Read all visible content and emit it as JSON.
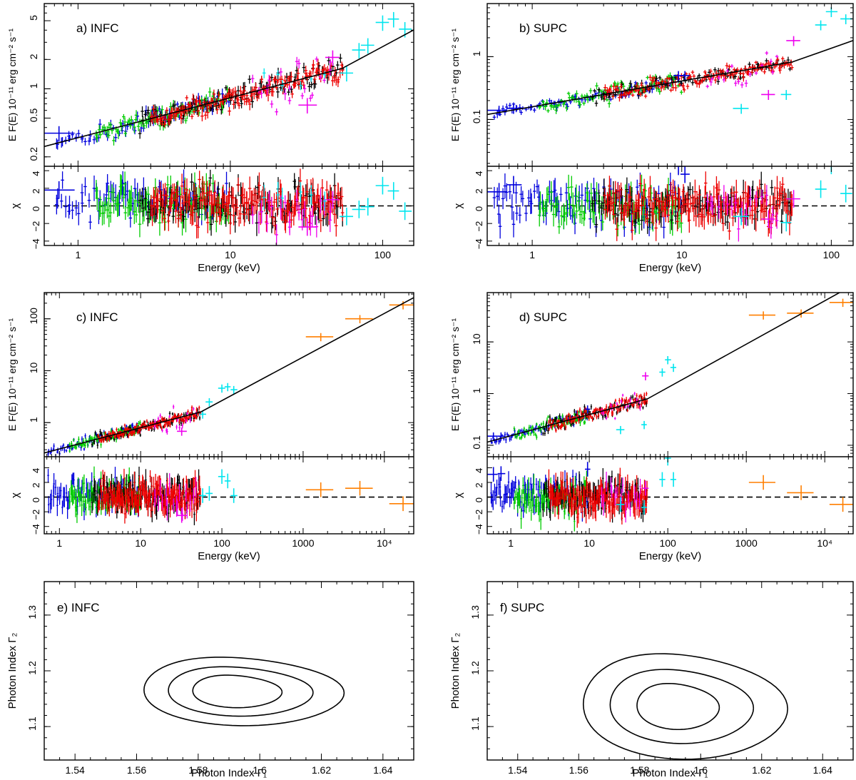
{
  "colors": {
    "black": "#000000",
    "red": "#ee0000",
    "green": "#00cc00",
    "blue": "#0000dd",
    "cyan": "#00e5ee",
    "magenta": "#ee00ee",
    "orange": "#ff7f00"
  },
  "chart_data": [
    {
      "id": "a",
      "type": "scatter",
      "title": "a)  INFC",
      "xlabel": "Energy (keV)",
      "ylabel": "E F(E) 10⁻¹¹ erg  cm⁻² s⁻¹",
      "rlabel": "χ",
      "xscale": "log",
      "xlim": [
        0.6,
        160
      ],
      "yscale": "log",
      "ylim": [
        0.16,
        7.5
      ],
      "rlim": [
        -4.5,
        4.5
      ],
      "xticks": [
        [
          "1",
          1
        ],
        [
          "10",
          10
        ],
        [
          "100",
          100
        ]
      ],
      "yticks": [
        [
          "0.2",
          0.2
        ],
        [
          "0.5",
          0.5
        ],
        [
          "1",
          1
        ],
        [
          "2",
          2
        ],
        [
          "5",
          5
        ]
      ],
      "rticks": [
        [
          "−4",
          -4
        ],
        [
          "−2",
          -2
        ],
        [
          "0",
          0
        ],
        [
          "2",
          2
        ],
        [
          "4",
          4
        ]
      ],
      "model": {
        "e0": 0.6,
        "f0": 0.255,
        "g1": 1.59,
        "eb": 54,
        "g2": 1.16,
        "emax": 160
      },
      "series": [
        {
          "color": "blue",
          "emin": 0.7,
          "emax": 10,
          "n": 70,
          "scat": 0.05,
          "chi": 0.6
        },
        {
          "color": "green",
          "emin": 1.3,
          "emax": 10,
          "n": 90,
          "scat": 0.05,
          "chi": 0.2
        },
        {
          "color": "black",
          "emin": 2.5,
          "emax": 55,
          "n": 110,
          "scat": 0.06,
          "chi": 0.3
        },
        {
          "color": "red",
          "emin": 3,
          "emax": 55,
          "n": 160,
          "scat": 0.05,
          "chi": 0.1
        },
        {
          "color": "magenta",
          "emin": 14,
          "emax": 48,
          "n": 22,
          "scat": 0.15,
          "chi": -0.6
        },
        {
          "color": "cyan",
          "emin": 14,
          "emax": 50,
          "n": 6,
          "scat": 0.1,
          "chi": 0.2
        }
      ],
      "points": [
        {
          "color": "blue",
          "e": 0.75,
          "el": 0.6,
          "eh": 0.95,
          "v": 0.35,
          "r": 1.8
        },
        {
          "color": "magenta",
          "e": 32,
          "el": 28,
          "eh": 37,
          "v": 0.68,
          "r": -2.4
        },
        {
          "color": "magenta",
          "e": 47,
          "el": 42,
          "eh": 52,
          "v": 2.1,
          "r": 0.7
        },
        {
          "color": "cyan",
          "e": 58,
          "el": 52,
          "eh": 64,
          "v": 1.45,
          "r": -1.2
        },
        {
          "color": "cyan",
          "e": 70,
          "el": 63,
          "eh": 77,
          "v": 2.5,
          "r": -0.4
        },
        {
          "color": "cyan",
          "e": 80,
          "el": 72,
          "eh": 88,
          "v": 2.8,
          "r": -0.1
        },
        {
          "color": "cyan",
          "e": 100,
          "el": 90,
          "eh": 110,
          "v": 4.8,
          "r": 2.3
        },
        {
          "color": "cyan",
          "e": 118,
          "el": 108,
          "eh": 128,
          "v": 5.2,
          "r": 1.7
        },
        {
          "color": "cyan",
          "e": 140,
          "el": 128,
          "eh": 155,
          "v": 4.1,
          "r": -0.6
        }
      ]
    },
    {
      "id": "b",
      "type": "scatter",
      "title": "b)  SUPC",
      "xlabel": "Energy (keV)",
      "ylabel": "E F(E) 10⁻¹¹ erg  cm⁻² s⁻¹",
      "rlabel": "χ",
      "xscale": "log",
      "xlim": [
        0.5,
        140
      ],
      "yscale": "log",
      "ylim": [
        0.018,
        7
      ],
      "rlim": [
        -4.5,
        4.5
      ],
      "xticks": [
        [
          "1",
          1
        ],
        [
          "10",
          10
        ],
        [
          "100",
          100
        ]
      ],
      "yticks": [
        [
          "0.1",
          0.1
        ],
        [
          "1",
          1
        ]
      ],
      "rticks": [
        [
          "−4",
          -4
        ],
        [
          "−2",
          -2
        ],
        [
          "0",
          0
        ],
        [
          "2",
          2
        ],
        [
          "4",
          4
        ]
      ],
      "model": {
        "e0": 0.5,
        "f0": 0.12,
        "g1": 1.59,
        "eb": 55,
        "g2": 1.16,
        "emax": 140
      },
      "series": [
        {
          "color": "blue",
          "emin": 0.55,
          "emax": 10,
          "n": 90,
          "scat": 0.05,
          "chi": 0.2
        },
        {
          "color": "green",
          "emin": 1.1,
          "emax": 10,
          "n": 90,
          "scat": 0.07,
          "chi": -0.3
        },
        {
          "color": "black",
          "emin": 2.5,
          "emax": 55,
          "n": 100,
          "scat": 0.06,
          "chi": 0.1
        },
        {
          "color": "red",
          "emin": 3,
          "emax": 55,
          "n": 150,
          "scat": 0.06,
          "chi": 0.0
        },
        {
          "color": "magenta",
          "emin": 14,
          "emax": 45,
          "n": 18,
          "scat": 0.12,
          "chi": -0.6
        }
      ],
      "points": [
        {
          "color": "blue",
          "e": 0.6,
          "el": 0.5,
          "eh": 0.68,
          "v": 0.14,
          "r": 1.6
        },
        {
          "color": "blue",
          "e": 0.75,
          "el": 0.68,
          "eh": 0.85,
          "v": 0.15,
          "r": 2.4
        },
        {
          "color": "blue",
          "e": 9.5,
          "el": 8.8,
          "eh": 10.3,
          "v": 0.5,
          "r": 4.5
        },
        {
          "color": "blue",
          "e": 10.5,
          "el": 9.8,
          "eh": 11.3,
          "v": 0.5,
          "r": 3.6
        },
        {
          "color": "cyan",
          "e": 25,
          "el": 22,
          "eh": 28,
          "v": 0.15,
          "r": -1.2
        },
        {
          "color": "magenta",
          "e": 38,
          "el": 34,
          "eh": 42,
          "v": 0.25,
          "r": -1.5
        },
        {
          "color": "magenta",
          "e": 56,
          "el": 50,
          "eh": 62,
          "v": 1.8,
          "r": 0.8
        },
        {
          "color": "cyan",
          "e": 50,
          "el": 46,
          "eh": 54,
          "v": 0.25,
          "r": -1.9
        },
        {
          "color": "cyan",
          "e": 85,
          "el": 78,
          "eh": 93,
          "v": 3.2,
          "r": 1.9
        },
        {
          "color": "cyan",
          "e": 100,
          "el": 92,
          "eh": 110,
          "v": 5.2,
          "r": 4.6
        },
        {
          "color": "cyan",
          "e": 125,
          "el": 115,
          "eh": 138,
          "v": 4.0,
          "r": 1.4
        }
      ]
    },
    {
      "id": "c",
      "type": "scatter",
      "title": "c)  INFC",
      "xlabel": "Energy (keV)",
      "ylabel": "E F(E) 10⁻¹¹ erg  cm⁻² s⁻¹",
      "rlabel": "χ",
      "xscale": "log",
      "xlim": [
        0.65,
        23000
      ],
      "yscale": "log",
      "ylim": [
        0.22,
        320
      ],
      "rlim": [
        -5,
        5.5
      ],
      "xticks": [
        [
          "1",
          1
        ],
        [
          "10",
          10
        ],
        [
          "100",
          100
        ],
        [
          "1000",
          1000
        ],
        [
          "10⁴",
          10000
        ]
      ],
      "yticks": [
        [
          "1",
          1
        ],
        [
          "10",
          10
        ],
        [
          "100",
          100
        ]
      ],
      "rticks": [
        [
          "−4",
          -4
        ],
        [
          "−2",
          -2
        ],
        [
          "0",
          0
        ],
        [
          "2",
          2
        ],
        [
          "4",
          4
        ]
      ],
      "model": {
        "e0": 0.65,
        "f0": 0.26,
        "g1": 1.59,
        "eb": 55,
        "g2": 1.16,
        "emax": 23000
      },
      "series": [
        {
          "color": "blue",
          "emin": 0.7,
          "emax": 10,
          "n": 70,
          "scat": 0.05,
          "chi": 0.5
        },
        {
          "color": "green",
          "emin": 1.3,
          "emax": 10,
          "n": 80,
          "scat": 0.05,
          "chi": 0.3
        },
        {
          "color": "black",
          "emin": 2.5,
          "emax": 55,
          "n": 100,
          "scat": 0.06,
          "chi": 0.2
        },
        {
          "color": "red",
          "emin": 3,
          "emax": 55,
          "n": 150,
          "scat": 0.05,
          "chi": 0.0
        },
        {
          "color": "magenta",
          "emin": 14,
          "emax": 48,
          "n": 18,
          "scat": 0.14,
          "chi": -0.5
        }
      ],
      "points": [
        {
          "color": "magenta",
          "e": 32,
          "el": 28,
          "eh": 37,
          "v": 0.68,
          "r": -2.5
        },
        {
          "color": "cyan",
          "e": 58,
          "el": 52,
          "eh": 64,
          "v": 1.45,
          "r": 0.2
        },
        {
          "color": "cyan",
          "e": 70,
          "el": 63,
          "eh": 77,
          "v": 2.5,
          "r": 0.5
        },
        {
          "color": "cyan",
          "e": 100,
          "el": 90,
          "eh": 110,
          "v": 4.6,
          "r": 2.8
        },
        {
          "color": "cyan",
          "e": 118,
          "el": 108,
          "eh": 128,
          "v": 4.9,
          "r": 2.2
        },
        {
          "color": "cyan",
          "e": 140,
          "el": 128,
          "eh": 155,
          "v": 4.3,
          "r": 0.2
        },
        {
          "color": "orange",
          "e": 1650,
          "el": 1080,
          "eh": 2350,
          "v": 45,
          "r": 1.0
        },
        {
          "color": "orange",
          "e": 5000,
          "el": 3300,
          "eh": 7200,
          "v": 100,
          "r": 1.2
        },
        {
          "color": "orange",
          "e": 17000,
          "el": 11500,
          "eh": 23000,
          "v": 185,
          "r": -0.9
        }
      ]
    },
    {
      "id": "d",
      "type": "scatter",
      "title": "d)  SUPC",
      "xlabel": "Energy (keV)",
      "ylabel": "E F(E) 10⁻¹¹ erg  cm⁻² s⁻¹",
      "rlabel": "χ",
      "xscale": "log",
      "xlim": [
        0.5,
        23000
      ],
      "yscale": "log",
      "ylim": [
        0.06,
        90
      ],
      "rlim": [
        -5,
        5.5
      ],
      "xticks": [
        [
          "1",
          1
        ],
        [
          "10",
          10
        ],
        [
          "100",
          100
        ],
        [
          "1000",
          1000
        ],
        [
          "10⁴",
          10000
        ]
      ],
      "yticks": [
        [
          "0.1",
          0.1
        ],
        [
          "1",
          1
        ],
        [
          "10",
          10
        ]
      ],
      "rticks": [
        [
          "−4",
          -4
        ],
        [
          "−2",
          -2
        ],
        [
          "0",
          0
        ],
        [
          "2",
          2
        ],
        [
          "4",
          4
        ]
      ],
      "model": {
        "e0": 0.5,
        "f0": 0.115,
        "g1": 1.59,
        "eb": 55,
        "g2": 1.16,
        "emax": 23000
      },
      "series": [
        {
          "color": "blue",
          "emin": 0.55,
          "emax": 10,
          "n": 80,
          "scat": 0.05,
          "chi": 0.3
        },
        {
          "color": "green",
          "emin": 1.1,
          "emax": 10,
          "n": 80,
          "scat": 0.07,
          "chi": -0.3
        },
        {
          "color": "black",
          "emin": 2.5,
          "emax": 55,
          "n": 90,
          "scat": 0.07,
          "chi": 0.1
        },
        {
          "color": "red",
          "emin": 3,
          "emax": 55,
          "n": 130,
          "scat": 0.06,
          "chi": 0.0
        },
        {
          "color": "magenta",
          "emin": 14,
          "emax": 48,
          "n": 16,
          "scat": 0.14,
          "chi": -0.4
        }
      ],
      "points": [
        {
          "color": "blue",
          "e": 0.6,
          "el": 0.5,
          "eh": 0.68,
          "v": 0.15,
          "r": 3.1
        },
        {
          "color": "blue",
          "e": 0.75,
          "el": 0.68,
          "eh": 0.85,
          "v": 0.15,
          "r": 3.2
        },
        {
          "color": "blue",
          "e": 9.5,
          "el": 8.8,
          "eh": 10.3,
          "v": 0.5,
          "r": 3.8
        },
        {
          "color": "cyan",
          "e": 25,
          "el": 22,
          "eh": 28,
          "v": 0.2,
          "r": -1.0
        },
        {
          "color": "magenta",
          "e": 52,
          "el": 47,
          "eh": 57,
          "v": 2.2,
          "r": 1.2
        },
        {
          "color": "cyan",
          "e": 50,
          "el": 46,
          "eh": 54,
          "v": 0.25,
          "r": -1.4
        },
        {
          "color": "cyan",
          "e": 85,
          "el": 78,
          "eh": 93,
          "v": 2.6,
          "r": 2.4
        },
        {
          "color": "cyan",
          "e": 100,
          "el": 92,
          "eh": 110,
          "v": 4.5,
          "r": 5.3
        },
        {
          "color": "cyan",
          "e": 118,
          "el": 108,
          "eh": 128,
          "v": 3.2,
          "r": 2.4
        },
        {
          "color": "orange",
          "e": 1650,
          "el": 1080,
          "eh": 2350,
          "v": 33,
          "r": 2.0
        },
        {
          "color": "orange",
          "e": 5000,
          "el": 3300,
          "eh": 7200,
          "v": 36,
          "r": 0.6
        },
        {
          "color": "orange",
          "e": 17000,
          "el": 11500,
          "eh": 23000,
          "v": 58,
          "r": -1.0
        }
      ]
    },
    {
      "id": "e",
      "type": "contour",
      "title": "e) INFC",
      "xlabel": "Photon Index Γ₁",
      "ylabel": "Photon Index Γ₂",
      "xlim": [
        1.53,
        1.65
      ],
      "ylim": [
        1.04,
        1.36
      ],
      "xticks": [
        [
          "1.54",
          1.54
        ],
        [
          "1.56",
          1.56
        ],
        [
          "1.58",
          1.58
        ],
        [
          "1.6",
          1.6
        ],
        [
          "1.62",
          1.62
        ],
        [
          "1.64",
          1.64
        ]
      ],
      "yticks": [
        [
          "1.1",
          1.1
        ],
        [
          "1.2",
          1.2
        ],
        [
          "1.3",
          1.3
        ]
      ],
      "center": [
        1.591,
        1.163
      ],
      "contours": [
        {
          "ax": 0.0325,
          "ay": 0.061
        },
        {
          "ax": 0.0235,
          "ay": 0.044
        },
        {
          "ax": 0.0145,
          "ay": 0.029
        }
      ]
    },
    {
      "id": "f",
      "type": "contour",
      "title": "f) SUPC",
      "xlabel": "Photon Index Γ₁",
      "ylabel": "Photon Index Γ₂",
      "xlim": [
        1.53,
        1.65
      ],
      "ylim": [
        1.04,
        1.36
      ],
      "xticks": [
        [
          "1.54",
          1.54
        ],
        [
          "1.56",
          1.56
        ],
        [
          "1.58",
          1.58
        ],
        [
          "1.6",
          1.6
        ],
        [
          "1.62",
          1.62
        ],
        [
          "1.64",
          1.64
        ]
      ],
      "yticks": [
        [
          "1.1",
          1.1
        ],
        [
          "1.2",
          1.2
        ],
        [
          "1.3",
          1.3
        ]
      ],
      "center": [
        1.591,
        1.136
      ],
      "contours": [
        {
          "ax": 0.0335,
          "ay": 0.094
        },
        {
          "ax": 0.0235,
          "ay": 0.066
        },
        {
          "ax": 0.0135,
          "ay": 0.041
        }
      ]
    }
  ]
}
